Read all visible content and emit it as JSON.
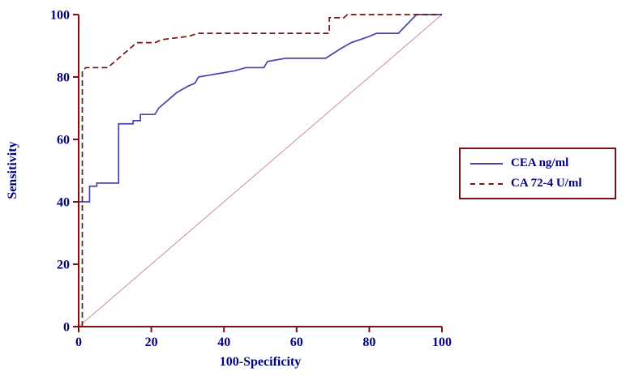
{
  "chart_data": {
    "type": "line",
    "subtype": "roc-curve",
    "title": "",
    "xlabel": "100-Specificity",
    "ylabel": "Sensitivity",
    "xlim": [
      0,
      100
    ],
    "ylim": [
      0,
      100
    ],
    "xticks": [
      0,
      20,
      40,
      60,
      80,
      100
    ],
    "yticks": [
      0,
      20,
      40,
      60,
      80,
      100
    ],
    "grid": false,
    "legend_position": "right-outside",
    "axis_color": "#7b1113",
    "label_color": "#000080",
    "series": [
      {
        "name": "CEA ng/ml",
        "color": "#4444aa",
        "style": "solid",
        "points": [
          [
            0,
            40
          ],
          [
            3,
            40
          ],
          [
            3,
            45
          ],
          [
            5,
            45
          ],
          [
            5,
            46
          ],
          [
            11,
            46
          ],
          [
            11,
            65
          ],
          [
            15,
            65
          ],
          [
            15,
            66
          ],
          [
            17,
            66
          ],
          [
            17,
            68
          ],
          [
            21,
            68
          ],
          [
            22,
            70
          ],
          [
            24,
            72
          ],
          [
            27,
            75
          ],
          [
            30,
            77
          ],
          [
            32,
            78
          ],
          [
            33,
            80
          ],
          [
            38,
            81
          ],
          [
            43,
            82
          ],
          [
            46,
            83
          ],
          [
            51,
            83
          ],
          [
            52,
            85
          ],
          [
            57,
            86
          ],
          [
            68,
            86
          ],
          [
            72,
            89
          ],
          [
            75,
            91
          ],
          [
            80,
            93
          ],
          [
            82,
            94
          ],
          [
            88,
            94
          ],
          [
            93,
            100
          ],
          [
            100,
            100
          ]
        ]
      },
      {
        "name": "CA 72-4 U/ml",
        "color": "#7b1113",
        "style": "dashed",
        "points": [
          [
            1,
            0
          ],
          [
            1,
            82
          ],
          [
            2,
            83
          ],
          [
            8,
            83
          ],
          [
            12,
            87
          ],
          [
            16,
            91
          ],
          [
            21,
            91
          ],
          [
            23,
            92
          ],
          [
            30,
            93
          ],
          [
            33,
            94
          ],
          [
            68,
            94
          ],
          [
            69,
            94
          ],
          [
            69,
            99
          ],
          [
            73,
            99
          ],
          [
            74,
            100
          ],
          [
            100,
            100
          ]
        ]
      }
    ],
    "reference_line": {
      "from": [
        0,
        0
      ],
      "to": [
        100,
        100
      ],
      "color": "#d09090"
    }
  }
}
